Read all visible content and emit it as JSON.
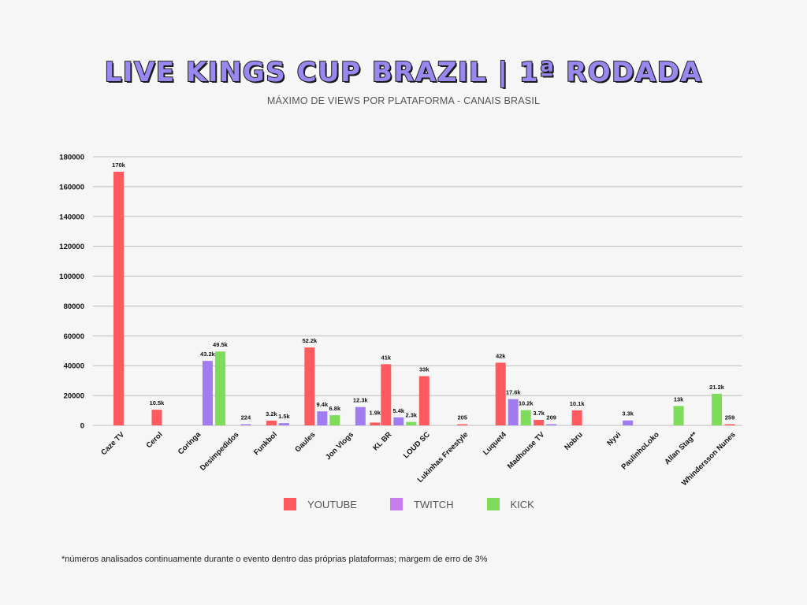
{
  "header": {
    "title": "LIVE KINGS CUP BRAZIL | 1ª RODADA",
    "subtitle": "MÁXIMO DE VIEWS POR PLATAFORMA - CANAIS BRASIL"
  },
  "footnote": "*números analisados continuamente durante o evento dentro das próprias plataformas; margem de erro de 3%",
  "colors": {
    "youtube": "#ff5a5f",
    "twitch": "#a07cf0",
    "kick": "#7ddc5a",
    "legend_twitch": "#c77dee",
    "grid": "#bdbdbd",
    "axis_text": "#111111"
  },
  "chart_data": {
    "type": "bar",
    "categories": [
      "Caze TV",
      "Cerol",
      "Coringa",
      "Desimpedidos",
      "Funkbol",
      "Gaules",
      "Jon Vlogs",
      "KL BR",
      "LOUD SC",
      "Lukinhas Freestyle",
      "Luquet4",
      "Madhouse TV",
      "Nobru",
      "Nyvi",
      "PaulinhoLoko",
      "Allan Stag**",
      "Whindersson Nunes"
    ],
    "series": [
      {
        "name": "YOUTUBE",
        "color_key": "youtube",
        "values": [
          170000,
          10500,
          null,
          null,
          3200,
          52200,
          null,
          41000,
          33000,
          205,
          42000,
          3700,
          10100,
          null,
          null,
          null,
          259
        ],
        "labels": [
          "170k",
          "10.5k",
          null,
          null,
          "3.2k",
          "52.2k",
          "1.9k",
          "41k",
          "33k",
          "205",
          "42k",
          "3.7k",
          "10.1k",
          null,
          null,
          null,
          "259"
        ]
      },
      {
        "name": "TWITCH",
        "color_key": "twitch",
        "values": [
          null,
          null,
          43200,
          224,
          1500,
          9400,
          12300,
          5400,
          null,
          null,
          17600,
          209,
          null,
          3300,
          null,
          null,
          null
        ],
        "labels": [
          null,
          null,
          "43.2k",
          "224",
          "1.5k",
          "9.4k",
          "12.3k",
          "5.4k",
          null,
          null,
          "17.6k",
          "209",
          null,
          "3.3k",
          null,
          null,
          null
        ]
      },
      {
        "name": "KICK",
        "color_key": "kick",
        "values": [
          null,
          null,
          49500,
          null,
          null,
          6800,
          null,
          2300,
          null,
          null,
          10200,
          null,
          null,
          null,
          13000,
          21200,
          null
        ],
        "labels": [
          null,
          null,
          "49.5k",
          null,
          null,
          "6.8k",
          null,
          "2.3k",
          null,
          null,
          "10.2k",
          null,
          null,
          null,
          "13k",
          "21.2k",
          null
        ]
      }
    ],
    "extra_labels": [
      {
        "category": "Jon Vlogs",
        "series": "YOUTUBE",
        "value": 1900,
        "label": "1.9k"
      }
    ],
    "ylim": [
      0,
      180000
    ],
    "yticks": [
      0,
      20000,
      40000,
      60000,
      80000,
      100000,
      120000,
      140000,
      160000,
      180000
    ],
    "grid": true,
    "legend_position": "bottom",
    "xlabel": "",
    "ylabel": ""
  }
}
